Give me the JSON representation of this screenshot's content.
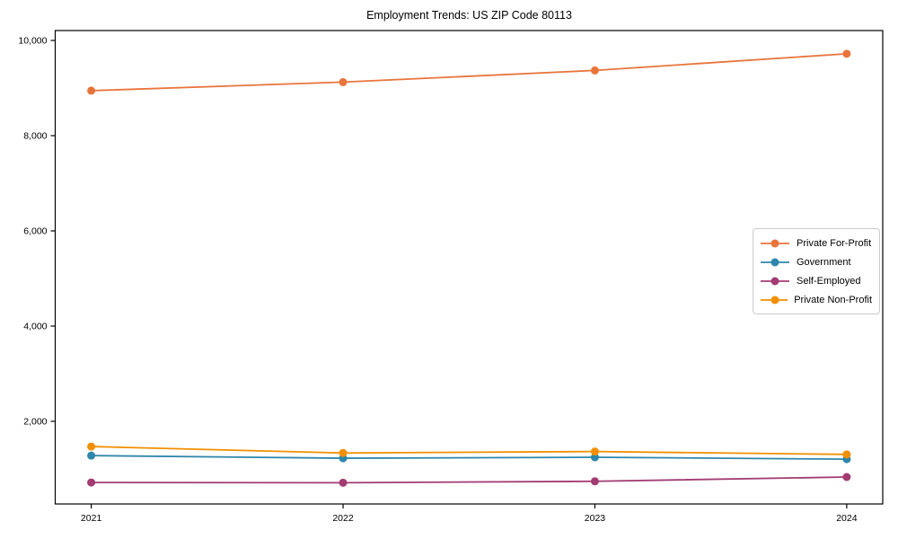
{
  "chart_data": {
    "type": "line",
    "title": "Employment Trends: US ZIP Code 80113",
    "x": [
      2021,
      2022,
      2023,
      2024
    ],
    "xtick_labels": [
      "2021",
      "2022",
      "2023",
      "2024"
    ],
    "series": [
      {
        "name": "Private For-Profit",
        "color": "#E8743B",
        "values": [
          8945,
          9125,
          9370,
          9720
        ]
      },
      {
        "name": "Government",
        "color": "#2E86AB",
        "values": [
          1280,
          1225,
          1245,
          1205
        ]
      },
      {
        "name": "Self-Employed",
        "color": "#A23B72",
        "values": [
          715,
          710,
          740,
          830
        ]
      },
      {
        "name": "Private Non-Profit",
        "color": "#F18F01",
        "values": [
          1470,
          1335,
          1365,
          1305
        ]
      }
    ],
    "yticks": [
      2000,
      4000,
      6000,
      8000,
      10000
    ],
    "ytick_labels": [
      "2,000",
      "4,000",
      "6,000",
      "8,000",
      "10,000"
    ],
    "xlim": [
      2020.857,
      2024.143
    ],
    "ylim": [
      264,
      10208
    ],
    "grid": false,
    "legend_position": "center right",
    "axes_frame_color": "#000000"
  }
}
